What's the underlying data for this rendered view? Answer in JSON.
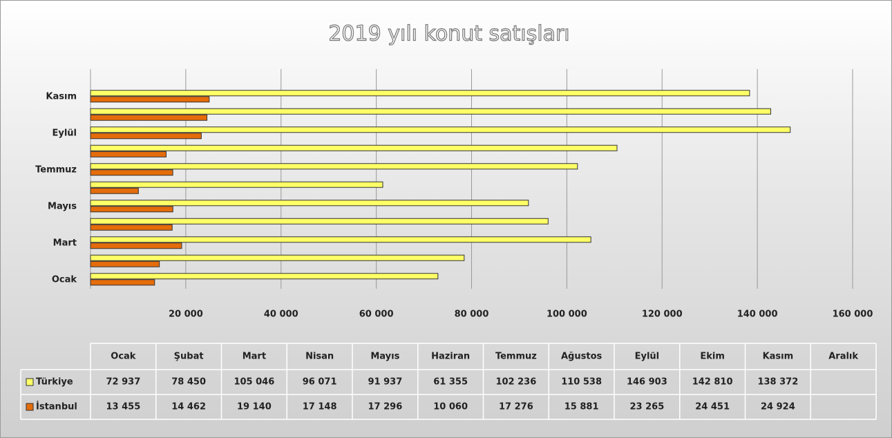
{
  "chart_data": {
    "type": "bar",
    "orientation": "horizontal",
    "title": "2019 yılı konut satışları",
    "categories": [
      "Ocak",
      "Şubat",
      "Mart",
      "Nisan",
      "Mayıs",
      "Haziran",
      "Temmuz",
      "Ağustos",
      "Eylül",
      "Ekim",
      "Kasım",
      "Aralık"
    ],
    "series": [
      {
        "name": "Türkiye",
        "color": "#ffff66",
        "values": [
          72937,
          78450,
          105046,
          96071,
          91937,
          61355,
          102236,
          110538,
          146903,
          142810,
          138372,
          null
        ],
        "value_labels": [
          "72 937",
          "78 450",
          "105 046",
          "96 071",
          "91 937",
          "61 355",
          "102 236",
          "110 538",
          "146 903",
          "142 810",
          "138 372",
          null
        ]
      },
      {
        "name": "İstanbul",
        "color": "#e46c0a",
        "values": [
          13455,
          14462,
          19140,
          17148,
          17296,
          10060,
          17276,
          15881,
          23265,
          24451,
          24924,
          null
        ],
        "value_labels": [
          "13 455",
          "14 462",
          "19 140",
          "17 148",
          "17 296",
          "10 060",
          "17 276",
          "15 881",
          "23 265",
          "24 451",
          "24 924",
          null
        ]
      }
    ],
    "xlim": [
      0,
      160000
    ],
    "xticks": [
      {
        "value": 20000,
        "label": "20 000"
      },
      {
        "value": 40000,
        "label": "40 000"
      },
      {
        "value": 60000,
        "label": "60 000"
      },
      {
        "value": 80000,
        "label": "80 000"
      },
      {
        "value": 100000,
        "label": "100 000"
      },
      {
        "value": 120000,
        "label": "120 000"
      },
      {
        "value": 140000,
        "label": "140 000"
      },
      {
        "value": 160000,
        "label": "160 000"
      }
    ],
    "grid": true,
    "data_table": true
  }
}
